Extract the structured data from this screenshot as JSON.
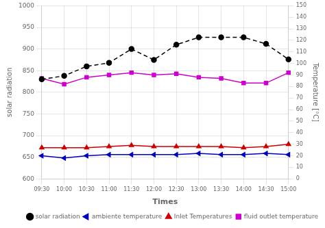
{
  "chart_data": {
    "type": "line",
    "xlabel": "Times",
    "ylabel": "solar radiation",
    "y2label": "Temperature [°C]",
    "categories": [
      "09:30",
      "10:00",
      "10:30",
      "11:00",
      "11:30",
      "12:00",
      "12:30",
      "13:00",
      "13:30",
      "14:00",
      "14:30",
      "15:00"
    ],
    "series": [
      {
        "name": "solar radiation",
        "color": "#000000",
        "marker": "circle",
        "line_style": "dashed",
        "axis": "y",
        "values": [
          830,
          838,
          860,
          868,
          900,
          875,
          910,
          927,
          927,
          927,
          912,
          876
        ]
      },
      {
        "name": "ambiente temperature",
        "color": "#0000bb",
        "marker": "triangle-left",
        "line_style": "solid",
        "axis": "y2",
        "values": [
          20,
          18,
          20,
          21,
          21,
          21,
          21,
          22,
          21,
          21,
          22,
          21
        ]
      },
      {
        "name": "Inlet Temperatures",
        "color": "#cc0000",
        "marker": "triangle-up",
        "line_style": "solid",
        "axis": "y2",
        "values": [
          27,
          27,
          27,
          28,
          29,
          28,
          28,
          28,
          28,
          27,
          28,
          30
        ]
      },
      {
        "name": "fluid outlet temperature",
        "color": "#cc00cc",
        "marker": "square",
        "line_style": "solid",
        "axis": "y2",
        "values": [
          87,
          82,
          88,
          90,
          92,
          90,
          91,
          88,
          87,
          83,
          83,
          92
        ]
      }
    ],
    "ylim": [
      600,
      1000
    ],
    "yticks": [
      600,
      650,
      700,
      750,
      800,
      850,
      900,
      950,
      1000
    ],
    "y2lim": [
      0,
      150
    ],
    "y2ticks": [
      0,
      10,
      20,
      30,
      40,
      50,
      60,
      70,
      80,
      90,
      100,
      110,
      120,
      130,
      140,
      150
    ],
    "grid": true,
    "legend": "lower right"
  }
}
